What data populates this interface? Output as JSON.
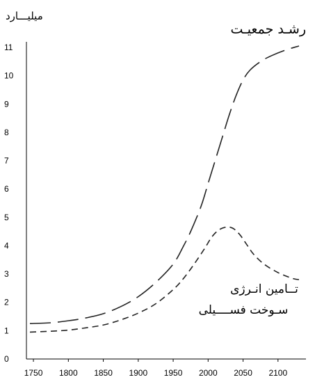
{
  "chart_data": {
    "type": "line",
    "ylabel": "میلیـــارد",
    "xlim": [
      1740,
      2140
    ],
    "ylim": [
      0,
      11
    ],
    "x_ticks": [
      1750,
      1800,
      1850,
      1900,
      1950,
      2000,
      2050,
      2100
    ],
    "y_ticks": [
      0,
      1,
      2,
      3,
      4,
      5,
      6,
      7,
      8,
      9,
      10,
      11
    ],
    "grid": false,
    "series": [
      {
        "name": "رشـد جمعیـت",
        "dash": "long",
        "points": [
          [
            1745,
            1.25
          ],
          [
            1775,
            1.28
          ],
          [
            1800,
            1.35
          ],
          [
            1825,
            1.45
          ],
          [
            1850,
            1.6
          ],
          [
            1875,
            1.85
          ],
          [
            1900,
            2.2
          ],
          [
            1925,
            2.7
          ],
          [
            1950,
            3.35
          ],
          [
            1965,
            4.0
          ],
          [
            1975,
            4.5
          ],
          [
            1990,
            5.4
          ],
          [
            2000,
            6.2
          ],
          [
            2010,
            7.0
          ],
          [
            2020,
            7.8
          ],
          [
            2030,
            8.6
          ],
          [
            2040,
            9.3
          ],
          [
            2050,
            9.85
          ],
          [
            2060,
            10.2
          ],
          [
            2075,
            10.5
          ],
          [
            2090,
            10.7
          ],
          [
            2110,
            10.9
          ],
          [
            2130,
            11.05
          ]
        ]
      },
      {
        "name": "تــامین انـرژی سـوخت فســــیلی",
        "name_lines": [
          "تــامین انـرژی",
          "سـوخت فســــیلی"
        ],
        "dash": "short",
        "points": [
          [
            1745,
            0.95
          ],
          [
            1775,
            0.98
          ],
          [
            1800,
            1.02
          ],
          [
            1825,
            1.1
          ],
          [
            1850,
            1.2
          ],
          [
            1875,
            1.38
          ],
          [
            1900,
            1.62
          ],
          [
            1925,
            1.95
          ],
          [
            1950,
            2.45
          ],
          [
            1965,
            2.85
          ],
          [
            1980,
            3.35
          ],
          [
            1995,
            3.9
          ],
          [
            2005,
            4.3
          ],
          [
            2015,
            4.55
          ],
          [
            2025,
            4.65
          ],
          [
            2035,
            4.62
          ],
          [
            2045,
            4.4
          ],
          [
            2055,
            4.05
          ],
          [
            2065,
            3.7
          ],
          [
            2080,
            3.35
          ],
          [
            2100,
            3.05
          ],
          [
            2120,
            2.85
          ],
          [
            2130,
            2.8
          ]
        ]
      }
    ]
  }
}
